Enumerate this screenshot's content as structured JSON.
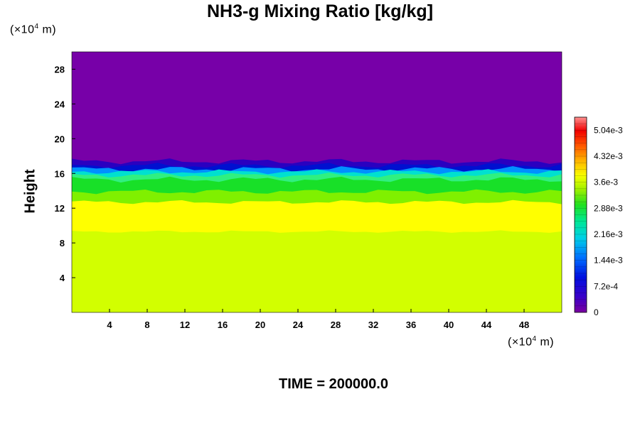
{
  "chart_data": {
    "type": "heatmap",
    "title": "NH3-g Mixing Ratio [kg/kg]",
    "ylabel": "Height",
    "y_unit_prefix": "(×10",
    "y_unit_exp": "4",
    "y_unit_suffix": " m)",
    "x_unit_prefix": "(×10",
    "x_unit_exp": "4",
    "x_unit_suffix": " m)",
    "xlim": [
      0,
      52
    ],
    "ylim": [
      0,
      30
    ],
    "x_ticks": [
      4,
      8,
      12,
      16,
      20,
      24,
      28,
      32,
      36,
      40,
      44,
      48
    ],
    "y_ticks": [
      4,
      8,
      12,
      16,
      20,
      24,
      28
    ],
    "colorbar": {
      "min": 0,
      "max": 0.0054,
      "labels": [
        "0",
        "7.2e-4",
        "1.44e-3",
        "2.16e-3",
        "2.88e-3",
        "3.6e-3",
        "4.32e-3",
        "5.04e-3"
      ],
      "label_values": [
        0,
        0.00072,
        0.00144,
        0.00216,
        0.00288,
        0.0036,
        0.00432,
        0.00504
      ]
    },
    "field": {
      "description_bands_height": [
        {
          "from": 0,
          "to": 9.3,
          "value": 0.0039
        },
        {
          "from": 9.3,
          "to": 12.6,
          "value": 0.0037
        },
        {
          "from": 12.6,
          "to": 14.6,
          "value": 0.0032
        },
        {
          "from": 14.6,
          "to": 16.5,
          "value": 0.0026
        },
        {
          "from": 16.5,
          "to": 17.3,
          "value": 0.001
        },
        {
          "from": 17.3,
          "to": 30,
          "value": 0.0
        }
      ]
    },
    "time_label": "TIME = 200000.0"
  },
  "colors": {
    "top": "#7700a8",
    "dark_blue": "#0010d0",
    "cyan": "#00e0d0",
    "green": "#18e028",
    "yellow": "#ffff00",
    "lime": "#d2ff00"
  }
}
